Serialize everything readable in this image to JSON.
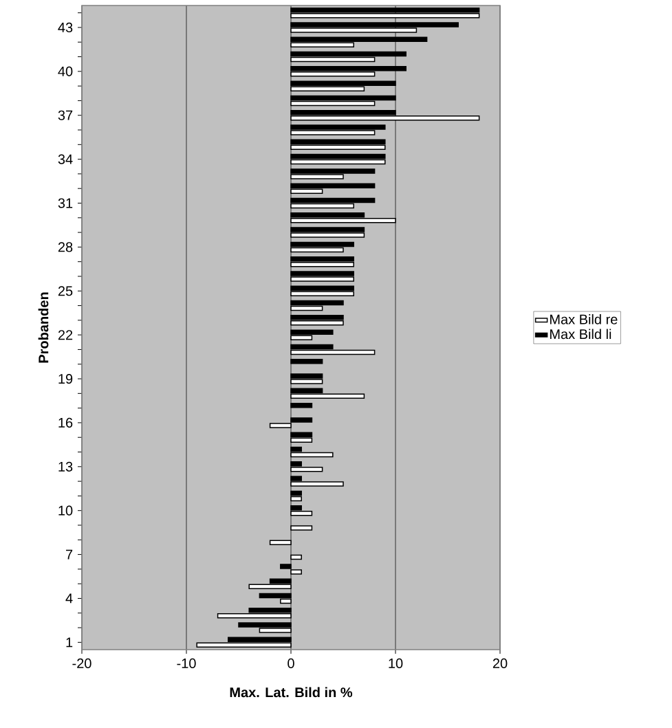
{
  "chart_data": {
    "type": "bar",
    "orientation": "horizontal",
    "categories": [
      null,
      "43",
      null,
      null,
      "40",
      null,
      null,
      "37",
      null,
      null,
      "34",
      null,
      null,
      "31",
      null,
      null,
      "28",
      null,
      null,
      "25",
      null,
      null,
      "22",
      null,
      null,
      "19",
      null,
      null,
      "16",
      null,
      null,
      "13",
      null,
      null,
      "10",
      null,
      null,
      "7",
      null,
      null,
      "4",
      null,
      null,
      "1"
    ],
    "series": [
      {
        "name": "Max Bild re",
        "color": "#ffffff",
        "values": [
          18,
          12,
          6,
          8,
          8,
          7,
          8,
          18,
          8,
          9,
          9,
          5,
          3,
          6,
          10,
          7,
          5,
          6,
          6,
          6,
          3,
          5,
          2,
          8,
          null,
          3,
          7,
          null,
          -2,
          2,
          4,
          3,
          5,
          1,
          2,
          2,
          -2,
          1,
          1,
          -4,
          -1,
          -7,
          -3,
          -9
        ]
      },
      {
        "name": "Max Bild li",
        "color": "#000000",
        "values": [
          18,
          16,
          13,
          11,
          11,
          10,
          10,
          10,
          9,
          9,
          9,
          8,
          8,
          8,
          7,
          7,
          6,
          6,
          6,
          6,
          5,
          5,
          4,
          4,
          3,
          3,
          3,
          2,
          2,
          2,
          1,
          1,
          1,
          1,
          1,
          null,
          null,
          null,
          -1,
          -2,
          -3,
          -4,
          -5,
          -6
        ]
      }
    ],
    "xlim": [
      -20,
      20
    ],
    "xticks": [
      -20,
      -10,
      0,
      10,
      20
    ],
    "xlabel": "Max. Lat. Bild in %",
    "ylabel": "Probanden",
    "grid": "x",
    "legend": "right"
  }
}
